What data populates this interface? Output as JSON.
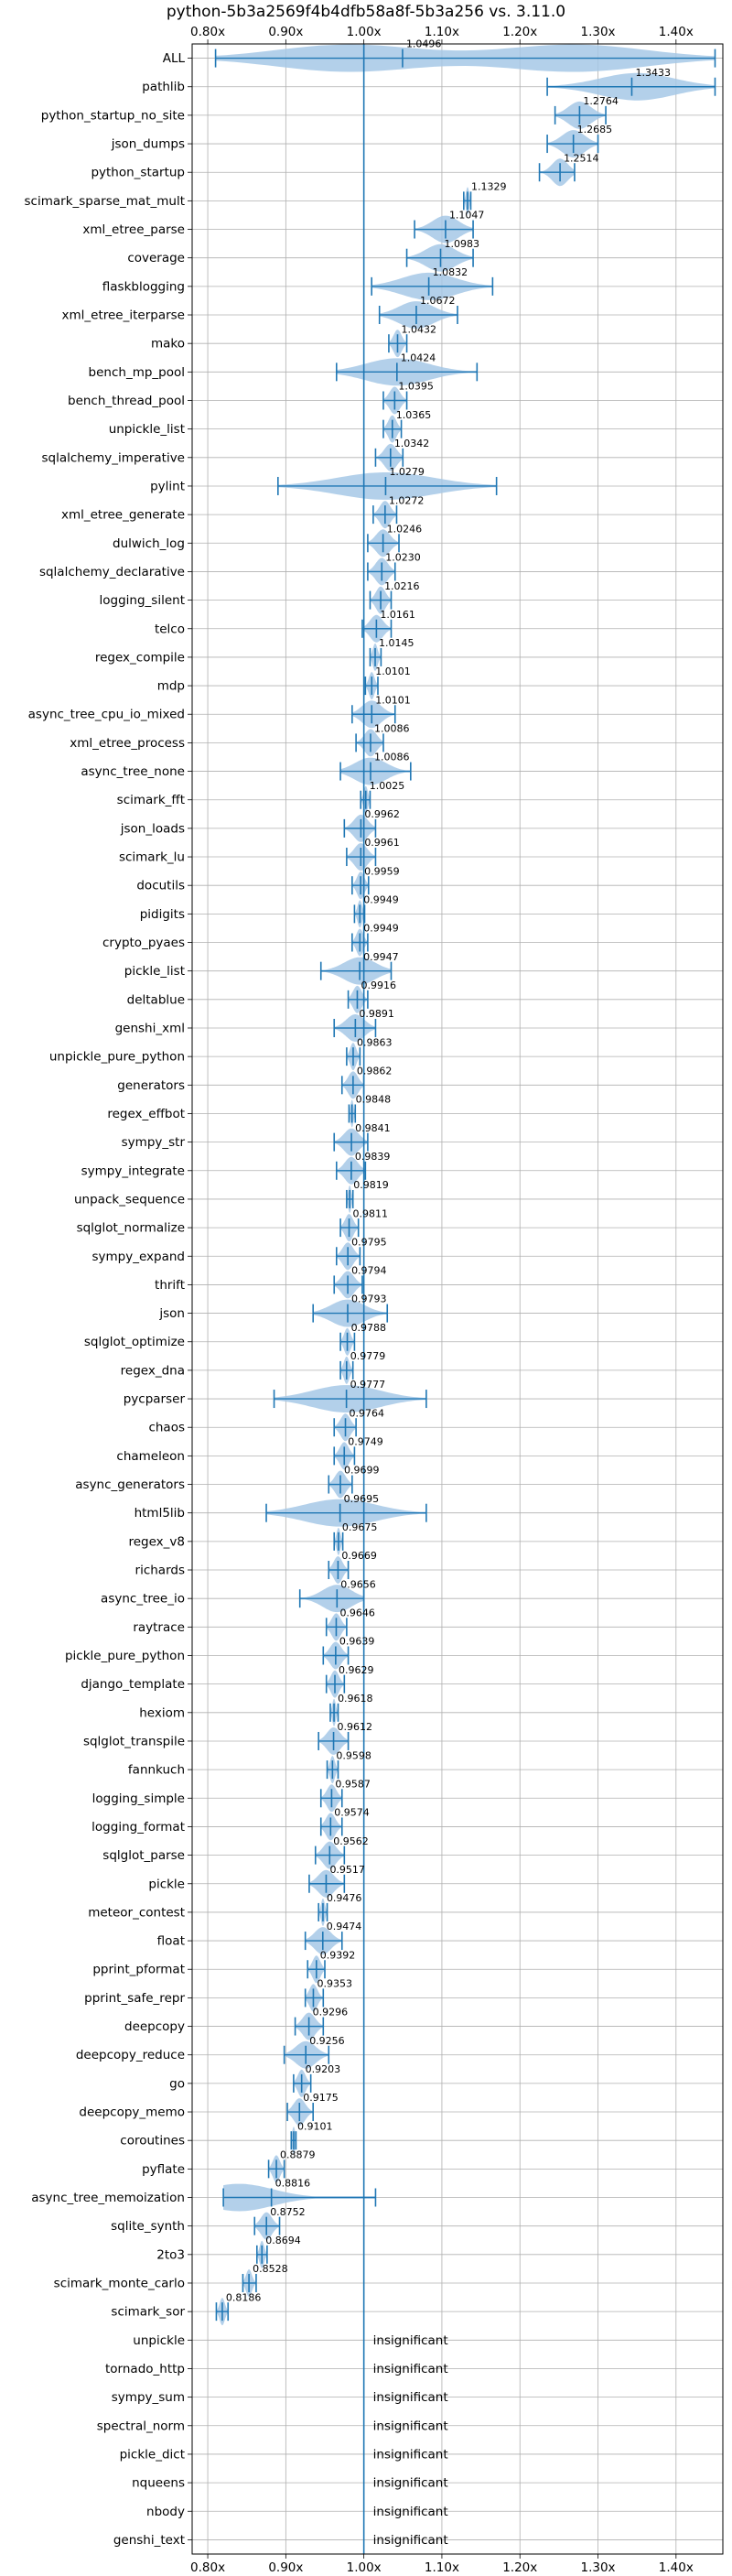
{
  "chart_data": {
    "type": "violin",
    "title": "python-5b3a2569f4b4dfb58a8f-5b3a256 vs. 3.11.0",
    "xlim": [
      0.78,
      1.46
    ],
    "x_ticks": [
      0.8,
      0.9,
      1.0,
      1.1,
      1.2,
      1.3,
      1.4
    ],
    "x_tick_labels": [
      "0.80x",
      "0.90x",
      "1.00x",
      "1.10x",
      "1.20x",
      "1.30x",
      "1.40x"
    ],
    "reference_line": 1.0,
    "grid": true,
    "colors": {
      "main": "#1f77b4",
      "violin_fill": "#a6c8e6",
      "grid": "#b0b0b0",
      "text": "#000000"
    },
    "insignificant_label": "insignificant",
    "benchmarks": [
      {
        "name": "ALL",
        "label": "1.0496",
        "value": 1.0496,
        "min": 0.81,
        "max": 1.45,
        "peaks": [
          0.98,
          1.27
        ]
      },
      {
        "name": "pathlib",
        "label": "1.3433",
        "value": 1.3433,
        "min": 1.235,
        "max": 1.45,
        "peaks": [
          1.35
        ]
      },
      {
        "name": "python_startup_no_site",
        "label": "1.2764",
        "value": 1.2764,
        "min": 1.245,
        "max": 1.31
      },
      {
        "name": "json_dumps",
        "label": "1.2685",
        "value": 1.2685,
        "min": 1.235,
        "max": 1.3
      },
      {
        "name": "python_startup",
        "label": "1.2514",
        "value": 1.2514,
        "min": 1.225,
        "max": 1.27
      },
      {
        "name": "scimark_sparse_mat_mult",
        "label": "1.1329",
        "value": 1.1329,
        "min": 1.128,
        "max": 1.137
      },
      {
        "name": "xml_etree_parse",
        "label": "1.1047",
        "value": 1.1047,
        "min": 1.065,
        "max": 1.14
      },
      {
        "name": "coverage",
        "label": "1.0983",
        "value": 1.0983,
        "min": 1.055,
        "max": 1.14
      },
      {
        "name": "flaskblogging",
        "label": "1.0832",
        "value": 1.0832,
        "min": 1.01,
        "max": 1.165
      },
      {
        "name": "xml_etree_iterparse",
        "label": "1.0672",
        "value": 1.0672,
        "min": 1.02,
        "max": 1.12
      },
      {
        "name": "mako",
        "label": "1.0432",
        "value": 1.0432,
        "min": 1.032,
        "max": 1.055
      },
      {
        "name": "bench_mp_pool",
        "label": "1.0424",
        "value": 1.0424,
        "min": 0.965,
        "max": 1.145
      },
      {
        "name": "bench_thread_pool",
        "label": "1.0395",
        "value": 1.0395,
        "min": 1.025,
        "max": 1.055
      },
      {
        "name": "unpickle_list",
        "label": "1.0365",
        "value": 1.0365,
        "min": 1.025,
        "max": 1.048
      },
      {
        "name": "sqlalchemy_imperative",
        "label": "1.0342",
        "value": 1.0342,
        "min": 1.015,
        "max": 1.05
      },
      {
        "name": "pylint",
        "label": "1.0279",
        "value": 1.0279,
        "min": 0.89,
        "max": 1.17
      },
      {
        "name": "xml_etree_generate",
        "label": "1.0272",
        "value": 1.0272,
        "min": 1.012,
        "max": 1.042
      },
      {
        "name": "dulwich_log",
        "label": "1.0246",
        "value": 1.0246,
        "min": 1.005,
        "max": 1.045
      },
      {
        "name": "sqlalchemy_declarative",
        "label": "1.0230",
        "value": 1.023,
        "min": 1.005,
        "max": 1.04
      },
      {
        "name": "logging_silent",
        "label": "1.0216",
        "value": 1.0216,
        "min": 1.008,
        "max": 1.035
      },
      {
        "name": "telco",
        "label": "1.0161",
        "value": 1.0161,
        "min": 0.998,
        "max": 1.035
      },
      {
        "name": "regex_compile",
        "label": "1.0145",
        "value": 1.0145,
        "min": 1.008,
        "max": 1.022
      },
      {
        "name": "mdp",
        "label": "1.0101",
        "value": 1.0101,
        "min": 1.002,
        "max": 1.018
      },
      {
        "name": "async_tree_cpu_io_mixed",
        "label": "1.0101",
        "value": 1.0101,
        "min": 0.985,
        "max": 1.04
      },
      {
        "name": "xml_etree_process",
        "label": "1.0086",
        "value": 1.0086,
        "min": 0.99,
        "max": 1.025
      },
      {
        "name": "async_tree_none",
        "label": "1.0086",
        "value": 1.0086,
        "min": 0.97,
        "max": 1.06
      },
      {
        "name": "scimark_fft",
        "label": "1.0025",
        "value": 1.0025,
        "min": 0.996,
        "max": 1.008
      },
      {
        "name": "json_loads",
        "label": "0.9962",
        "value": 0.9962,
        "min": 0.975,
        "max": 1.015
      },
      {
        "name": "scimark_lu",
        "label": "0.9961",
        "value": 0.9961,
        "min": 0.978,
        "max": 1.015
      },
      {
        "name": "docutils",
        "label": "0.9959",
        "value": 0.9959,
        "min": 0.985,
        "max": 1.006
      },
      {
        "name": "pidigits",
        "label": "0.9949",
        "value": 0.9949,
        "min": 0.988,
        "max": 1.001
      },
      {
        "name": "crypto_pyaes",
        "label": "0.9949",
        "value": 0.9949,
        "min": 0.985,
        "max": 1.005
      },
      {
        "name": "pickle_list",
        "label": "0.9947",
        "value": 0.9947,
        "min": 0.945,
        "max": 1.035
      },
      {
        "name": "deltablue",
        "label": "0.9916",
        "value": 0.9916,
        "min": 0.98,
        "max": 1.005
      },
      {
        "name": "genshi_xml",
        "label": "0.9891",
        "value": 0.9891,
        "min": 0.962,
        "max": 1.015
      },
      {
        "name": "unpickle_pure_python",
        "label": "0.9863",
        "value": 0.9863,
        "min": 0.978,
        "max": 0.995
      },
      {
        "name": "generators",
        "label": "0.9862",
        "value": 0.9862,
        "min": 0.972,
        "max": 1.0
      },
      {
        "name": "regex_effbot",
        "label": "0.9848",
        "value": 0.9848,
        "min": 0.981,
        "max": 0.989
      },
      {
        "name": "sympy_str",
        "label": "0.9841",
        "value": 0.9841,
        "min": 0.962,
        "max": 1.005
      },
      {
        "name": "sympy_integrate",
        "label": "0.9839",
        "value": 0.9839,
        "min": 0.965,
        "max": 1.002
      },
      {
        "name": "unpack_sequence",
        "label": "0.9819",
        "value": 0.9819,
        "min": 0.978,
        "max": 0.986
      },
      {
        "name": "sqlglot_normalize",
        "label": "0.9811",
        "value": 0.9811,
        "min": 0.97,
        "max": 0.993
      },
      {
        "name": "sympy_expand",
        "label": "0.9795",
        "value": 0.9795,
        "min": 0.965,
        "max": 0.995
      },
      {
        "name": "thrift",
        "label": "0.9794",
        "value": 0.9794,
        "min": 0.962,
        "max": 0.998
      },
      {
        "name": "json",
        "label": "0.9793",
        "value": 0.9793,
        "min": 0.935,
        "max": 1.03
      },
      {
        "name": "sqlglot_optimize",
        "label": "0.9788",
        "value": 0.9788,
        "min": 0.97,
        "max": 0.988
      },
      {
        "name": "regex_dna",
        "label": "0.9779",
        "value": 0.9779,
        "min": 0.97,
        "max": 0.986
      },
      {
        "name": "pycparser",
        "label": "0.9777",
        "value": 0.9777,
        "min": 0.885,
        "max": 1.08
      },
      {
        "name": "chaos",
        "label": "0.9764",
        "value": 0.9764,
        "min": 0.962,
        "max": 0.99
      },
      {
        "name": "chameleon",
        "label": "0.9749",
        "value": 0.9749,
        "min": 0.962,
        "max": 0.988
      },
      {
        "name": "async_generators",
        "label": "0.9699",
        "value": 0.9699,
        "min": 0.955,
        "max": 0.985
      },
      {
        "name": "html5lib",
        "label": "0.9695",
        "value": 0.9695,
        "min": 0.875,
        "max": 1.08
      },
      {
        "name": "regex_v8",
        "label": "0.9675",
        "value": 0.9675,
        "min": 0.962,
        "max": 0.973
      },
      {
        "name": "richards",
        "label": "0.9669",
        "value": 0.9669,
        "min": 0.955,
        "max": 0.98
      },
      {
        "name": "async_tree_io",
        "label": "0.9656",
        "value": 0.9656,
        "min": 0.918,
        "max": 1.0
      },
      {
        "name": "raytrace",
        "label": "0.9646",
        "value": 0.9646,
        "min": 0.952,
        "max": 0.978
      },
      {
        "name": "pickle_pure_python",
        "label": "0.9639",
        "value": 0.9639,
        "min": 0.948,
        "max": 0.98
      },
      {
        "name": "django_template",
        "label": "0.9629",
        "value": 0.9629,
        "min": 0.952,
        "max": 0.975
      },
      {
        "name": "hexiom",
        "label": "0.9618",
        "value": 0.9618,
        "min": 0.957,
        "max": 0.967
      },
      {
        "name": "sqlglot_transpile",
        "label": "0.9612",
        "value": 0.9612,
        "min": 0.942,
        "max": 0.98
      },
      {
        "name": "fannkuch",
        "label": "0.9598",
        "value": 0.9598,
        "min": 0.953,
        "max": 0.967
      },
      {
        "name": "logging_simple",
        "label": "0.9587",
        "value": 0.9587,
        "min": 0.945,
        "max": 0.972
      },
      {
        "name": "logging_format",
        "label": "0.9574",
        "value": 0.9574,
        "min": 0.945,
        "max": 0.972
      },
      {
        "name": "sqlglot_parse",
        "label": "0.9562",
        "value": 0.9562,
        "min": 0.938,
        "max": 0.975
      },
      {
        "name": "pickle",
        "label": "0.9517",
        "value": 0.9517,
        "min": 0.93,
        "max": 0.975
      },
      {
        "name": "meteor_contest",
        "label": "0.9476",
        "value": 0.9476,
        "min": 0.942,
        "max": 0.953
      },
      {
        "name": "float",
        "label": "0.9474",
        "value": 0.9474,
        "min": 0.925,
        "max": 0.972
      },
      {
        "name": "pprint_pformat",
        "label": "0.9392",
        "value": 0.9392,
        "min": 0.928,
        "max": 0.95
      },
      {
        "name": "pprint_safe_repr",
        "label": "0.9353",
        "value": 0.9353,
        "min": 0.925,
        "max": 0.948
      },
      {
        "name": "deepcopy",
        "label": "0.9296",
        "value": 0.9296,
        "min": 0.912,
        "max": 0.948
      },
      {
        "name": "deepcopy_reduce",
        "label": "0.9256",
        "value": 0.9256,
        "min": 0.898,
        "max": 0.955
      },
      {
        "name": "go",
        "label": "0.9203",
        "value": 0.9203,
        "min": 0.91,
        "max": 0.932
      },
      {
        "name": "deepcopy_memo",
        "label": "0.9175",
        "value": 0.9175,
        "min": 0.902,
        "max": 0.935
      },
      {
        "name": "coroutines",
        "label": "0.9101",
        "value": 0.9101,
        "min": 0.907,
        "max": 0.913
      },
      {
        "name": "pyflate",
        "label": "0.8879",
        "value": 0.8879,
        "min": 0.878,
        "max": 0.898
      },
      {
        "name": "async_tree_memoization",
        "label": "0.8816",
        "value": 0.8816,
        "min": 0.82,
        "max": 1.015,
        "peaks": [
          0.84
        ]
      },
      {
        "name": "sqlite_synth",
        "label": "0.8752",
        "value": 0.8752,
        "min": 0.86,
        "max": 0.892
      },
      {
        "name": "2to3",
        "label": "0.8694",
        "value": 0.8694,
        "min": 0.863,
        "max": 0.876
      },
      {
        "name": "scimark_monte_carlo",
        "label": "0.8528",
        "value": 0.8528,
        "min": 0.845,
        "max": 0.862
      },
      {
        "name": "scimark_sor",
        "label": "0.8186",
        "value": 0.8186,
        "min": 0.811,
        "max": 0.826
      },
      {
        "name": "unpickle",
        "insignificant": true
      },
      {
        "name": "tornado_http",
        "insignificant": true
      },
      {
        "name": "sympy_sum",
        "insignificant": true
      },
      {
        "name": "spectral_norm",
        "insignificant": true
      },
      {
        "name": "pickle_dict",
        "insignificant": true
      },
      {
        "name": "nqueens",
        "insignificant": true
      },
      {
        "name": "nbody",
        "insignificant": true
      },
      {
        "name": "genshi_text",
        "insignificant": true
      }
    ]
  }
}
